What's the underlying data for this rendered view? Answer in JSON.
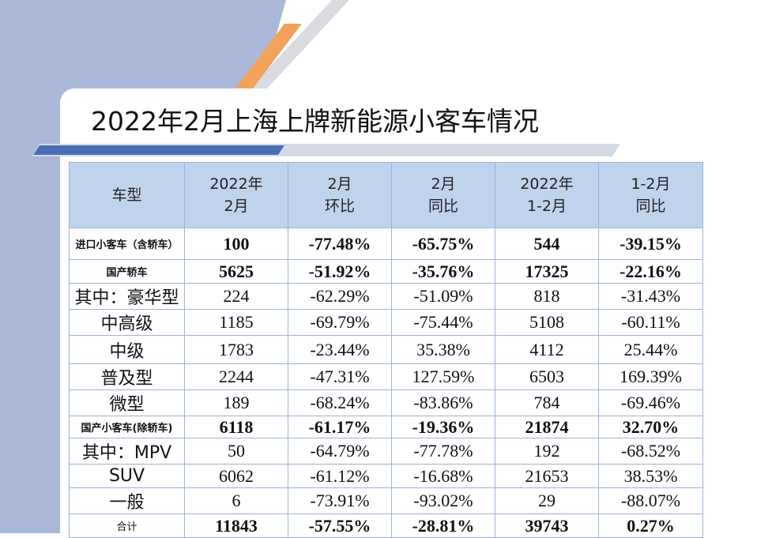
{
  "title": "2022年2月上海上牌新能源小客车情况",
  "headers": [
    {
      "line1": "车型",
      "line2": ""
    },
    {
      "line1": "2022年",
      "line2": "2月"
    },
    {
      "line1": "2月",
      "line2": "环比"
    },
    {
      "line1": "2月",
      "line2": "同比"
    },
    {
      "line1": "2022年",
      "line2": "1-2月"
    },
    {
      "line1": "1-2月",
      "line2": "同比"
    }
  ],
  "rows": [
    {
      "label": "进口小客车（含轿车）",
      "bold": true,
      "cells": [
        "100",
        "-77.48%",
        "-65.75%",
        "544",
        "-39.15%"
      ]
    },
    {
      "label": "国产轿车",
      "bold": true,
      "cells": [
        "5625",
        "-51.92%",
        "-35.76%",
        "17325",
        "-22.16%"
      ]
    },
    {
      "label": "其中：豪华型",
      "bold": false,
      "cells": [
        "224",
        "-62.29%",
        "-51.09%",
        "818",
        "-31.43%"
      ]
    },
    {
      "label": "中高级",
      "bold": false,
      "cells": [
        "1185",
        "-69.79%",
        "-75.44%",
        "5108",
        "-60.11%"
      ]
    },
    {
      "label": "中级",
      "bold": false,
      "cells": [
        "1783",
        "-23.44%",
        "35.38%",
        "4112",
        "25.44%"
      ]
    },
    {
      "label": "普及型",
      "bold": false,
      "cells": [
        "2244",
        "-47.31%",
        "127.59%",
        "6503",
        "169.39%"
      ]
    },
    {
      "label": "微型",
      "bold": false,
      "cells": [
        "189",
        "-68.24%",
        "-83.86%",
        "784",
        "-69.46%"
      ]
    },
    {
      "label": "国产小客车(除轿车)",
      "bold": true,
      "cells": [
        "6118",
        "-61.17%",
        "-19.36%",
        "21874",
        "32.70%"
      ]
    },
    {
      "label": "其中：MPV",
      "bold": false,
      "cells": [
        "50",
        "-64.79%",
        "-77.78%",
        "192",
        "-68.52%"
      ]
    },
    {
      "label": "SUV",
      "bold": false,
      "cells": [
        "6062",
        "-61.12%",
        "-16.68%",
        "21653",
        "38.53%"
      ]
    },
    {
      "label": "一般",
      "bold": false,
      "cells": [
        "6",
        "-73.91%",
        "-93.02%",
        "29",
        "-88.07%"
      ]
    },
    {
      "label": "合计",
      "bold": true,
      "cells": [
        "11843",
        "-57.55%",
        "-28.81%",
        "39743",
        "0.27%"
      ]
    }
  ]
}
